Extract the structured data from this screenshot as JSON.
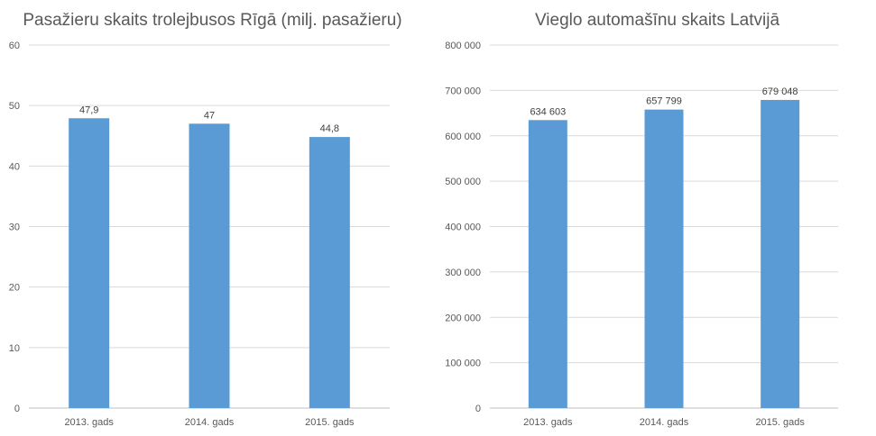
{
  "chart_data": [
    {
      "type": "bar",
      "title": "Pasažieru skaits trolejbusos Rīgā (milj. pasažieru)",
      "categories": [
        "2013. gads",
        "2014. gads",
        "2015. gads"
      ],
      "values": [
        47.9,
        47,
        44.8
      ],
      "value_labels": [
        "47,9",
        "47",
        "44,8"
      ],
      "ylim": [
        0,
        60
      ],
      "yticks": [
        0,
        10,
        20,
        30,
        40,
        50,
        60
      ],
      "ytick_labels": [
        "0",
        "10",
        "20",
        "30",
        "40",
        "50",
        "60"
      ],
      "grid": true,
      "bar_color": "#5b9bd5"
    },
    {
      "type": "bar",
      "title": "Vieglo automašīnu skaits Latvijā",
      "categories": [
        "2013. gads",
        "2014. gads",
        "2015. gads"
      ],
      "values": [
        634603,
        657799,
        679048
      ],
      "value_labels": [
        "634 603",
        "657 799",
        "679 048"
      ],
      "ylim": [
        0,
        800000
      ],
      "yticks": [
        0,
        100000,
        200000,
        300000,
        400000,
        500000,
        600000,
        700000,
        800000
      ],
      "ytick_labels": [
        "0",
        "100 000",
        "200 000",
        "300 000",
        "400 000",
        "500 000",
        "600 000",
        "700 000",
        "800 000"
      ],
      "grid": true,
      "bar_color": "#5b9bd5"
    }
  ]
}
